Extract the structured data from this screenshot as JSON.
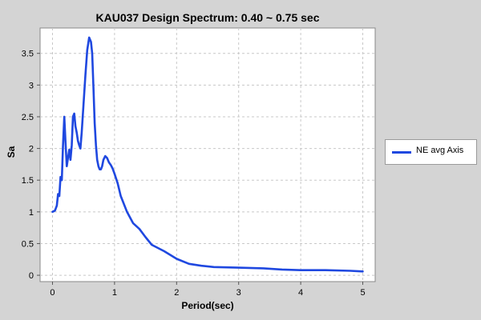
{
  "chart_data": {
    "type": "line",
    "title": "KAU037 Design Spectrum: 0.40 ~ 0.75 sec",
    "xlabel": "Period(sec)",
    "ylabel": "Sa",
    "xlim": [
      -0.2,
      5.2
    ],
    "ylim": [
      -0.1,
      3.9
    ],
    "xticks": [
      0,
      1,
      2,
      3,
      4,
      5
    ],
    "yticks": [
      0,
      0.5,
      1,
      1.5,
      2,
      2.5,
      3,
      3.5
    ],
    "grid": true,
    "legend_position": "right",
    "colors": {
      "series": "#1f48e0",
      "plot_bg": "#ffffff",
      "page_bg": "#d4d4d4",
      "grid": "#c8c8c8"
    },
    "series": [
      {
        "name": "NE avg Axis",
        "x": [
          0.0,
          0.04,
          0.07,
          0.09,
          0.11,
          0.13,
          0.15,
          0.17,
          0.19,
          0.21,
          0.23,
          0.25,
          0.27,
          0.29,
          0.31,
          0.33,
          0.35,
          0.37,
          0.39,
          0.41,
          0.43,
          0.45,
          0.47,
          0.5,
          0.53,
          0.56,
          0.59,
          0.62,
          0.64,
          0.66,
          0.68,
          0.7,
          0.72,
          0.74,
          0.76,
          0.78,
          0.8,
          0.82,
          0.85,
          0.88,
          0.91,
          0.94,
          0.97,
          1.0,
          1.05,
          1.1,
          1.2,
          1.3,
          1.4,
          1.5,
          1.6,
          1.8,
          2.0,
          2.2,
          2.4,
          2.6,
          3.0,
          3.4,
          3.7,
          4.0,
          4.4,
          4.8,
          5.0
        ],
        "y": [
          1.0,
          1.02,
          1.1,
          1.28,
          1.25,
          1.55,
          1.5,
          2.05,
          2.5,
          2.1,
          1.72,
          1.85,
          1.98,
          1.82,
          2.05,
          2.5,
          2.55,
          2.35,
          2.25,
          2.12,
          2.05,
          2.0,
          2.25,
          2.7,
          3.15,
          3.55,
          3.75,
          3.68,
          3.5,
          2.95,
          2.4,
          2.05,
          1.82,
          1.72,
          1.67,
          1.67,
          1.72,
          1.82,
          1.88,
          1.85,
          1.78,
          1.74,
          1.68,
          1.6,
          1.45,
          1.25,
          1.0,
          0.82,
          0.73,
          0.6,
          0.48,
          0.38,
          0.26,
          0.18,
          0.15,
          0.13,
          0.12,
          0.11,
          0.09,
          0.08,
          0.08,
          0.07,
          0.06
        ]
      }
    ]
  }
}
